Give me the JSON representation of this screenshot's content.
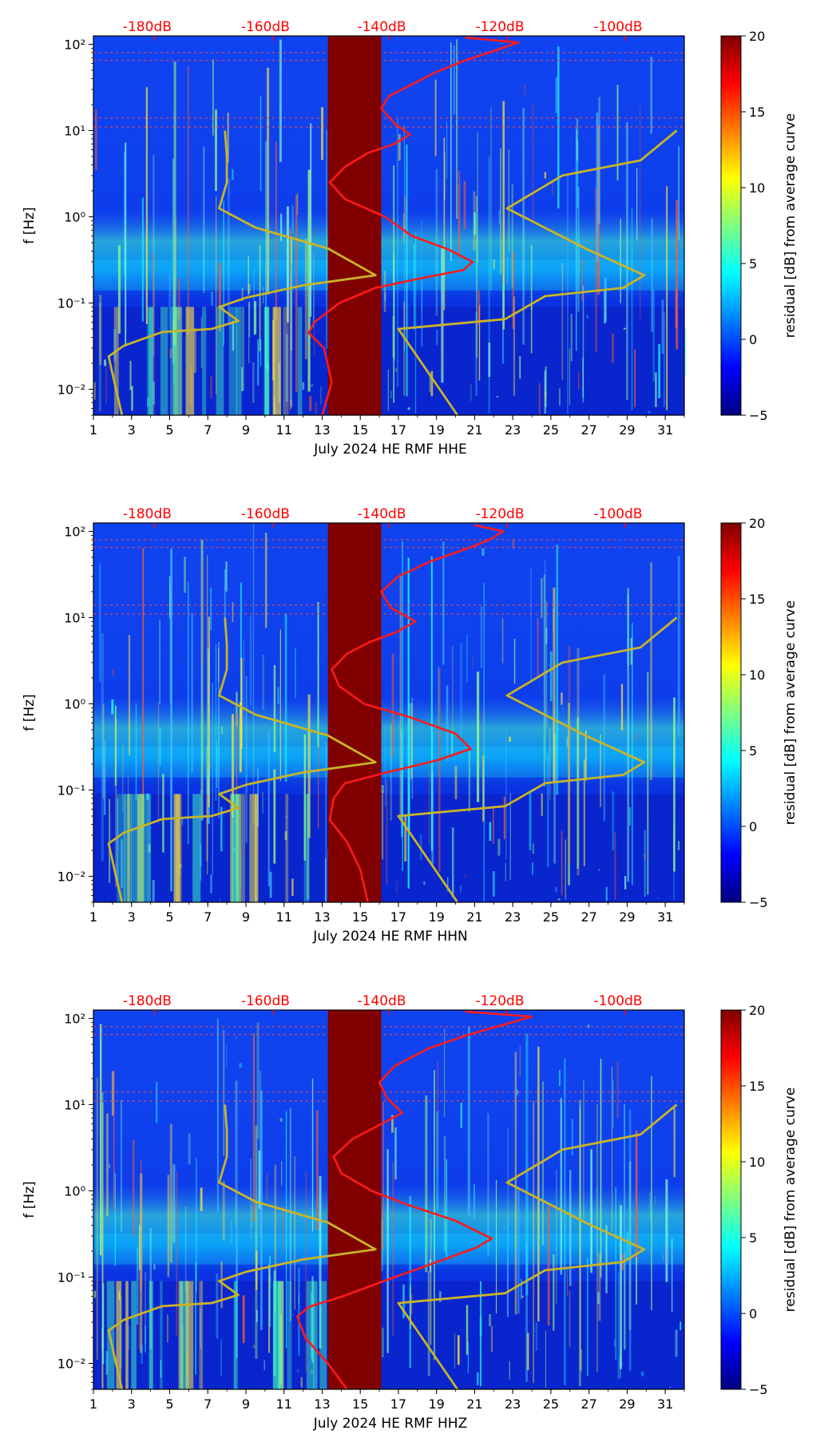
{
  "figure": {
    "colorbar": {
      "label": "residual [dB] from average curve",
      "ticks": [
        20,
        15,
        10,
        5,
        0,
        -5
      ],
      "tick_labels": [
        "20",
        "15",
        "10",
        "5",
        "0",
        "−5"
      ],
      "range": [
        -5,
        20
      ],
      "colors": [
        "#00007f",
        "#0000ff",
        "#007fff",
        "#00ffff",
        "#7fff7f",
        "#ffff00",
        "#ff7f00",
        "#ff0000",
        "#7f0000"
      ]
    },
    "colors": {
      "db_label": "#ff0000",
      "psd_curve": "#ff1a1a",
      "model_curve": "#c8b428",
      "gap": "#800000",
      "axis": "#000000"
    }
  },
  "chart_data": [
    {
      "type": "heatmap",
      "title": "",
      "xlabel": "July 2024 HE RMF  HHE",
      "ylabel": "f [Hz]",
      "x_ticks": [
        1,
        3,
        5,
        7,
        9,
        11,
        13,
        15,
        17,
        19,
        21,
        23,
        25,
        27,
        29,
        31
      ],
      "x_range": [
        1,
        32
      ],
      "y_ticks": [
        0.01,
        0.1,
        1,
        10,
        100
      ],
      "y_tick_labels": [
        "10⁻²",
        "10⁻¹",
        "10⁰",
        "10¹",
        "10²"
      ],
      "y_range": [
        0.005,
        125
      ],
      "db_axis_labels": [
        "-180dB",
        "-160dB",
        "-140dB",
        "-120dB",
        "-100dB"
      ],
      "db_axis_positions_day": [
        4.2,
        10.4,
        16.5,
        22.7,
        28.9
      ],
      "data_gap_days": [
        13.3,
        16.1
      ],
      "series": [
        {
          "name": "average PSD (top dB axis)",
          "points": [
            [
              13.0,
              0.005
            ],
            [
              13.5,
              0.012
            ],
            [
              13.1,
              0.03
            ],
            [
              12.3,
              0.045
            ],
            [
              12.6,
              0.06
            ],
            [
              13.9,
              0.1
            ],
            [
              15.8,
              0.15
            ],
            [
              18.5,
              0.2
            ],
            [
              20.4,
              0.24
            ],
            [
              20.9,
              0.3
            ],
            [
              19.6,
              0.42
            ],
            [
              17.7,
              0.6
            ],
            [
              16.3,
              1.0
            ],
            [
              14.2,
              1.6
            ],
            [
              13.4,
              2.5
            ],
            [
              14.2,
              3.8
            ],
            [
              15.4,
              5.5
            ],
            [
              16.8,
              7.0
            ],
            [
              17.6,
              9.0
            ],
            [
              16.8,
              12
            ],
            [
              16.1,
              18
            ],
            [
              16.5,
              25
            ],
            [
              17.8,
              35
            ],
            [
              19.0,
              48
            ],
            [
              20.5,
              65
            ],
            [
              22.1,
              85
            ],
            [
              23.3,
              105
            ],
            [
              20.5,
              120
            ]
          ]
        },
        {
          "name": "noise model (bottom day axis)",
          "points": [
            [
              2.5,
              0.005
            ],
            [
              2.1,
              0.012
            ],
            [
              1.8,
              0.024
            ],
            [
              2.6,
              0.032
            ],
            [
              4.6,
              0.046
            ],
            [
              7.2,
              0.05
            ],
            [
              8.6,
              0.062
            ],
            [
              7.6,
              0.09
            ],
            [
              9.0,
              0.115
            ],
            [
              12.0,
              0.16
            ],
            [
              15.8,
              0.21
            ],
            [
              13.3,
              0.43
            ],
            [
              9.5,
              0.75
            ],
            [
              7.6,
              1.25
            ],
            [
              8.0,
              2.5
            ],
            [
              8.0,
              5.0
            ],
            [
              7.9,
              10.0
            ]
          ]
        },
        {
          "name": "noise model right segment (bottom day axis)",
          "points": [
            [
              20.1,
              0.005
            ],
            [
              17.0,
              0.05
            ],
            [
              22.6,
              0.065
            ],
            [
              24.7,
              0.12
            ],
            [
              28.8,
              0.15
            ],
            [
              29.9,
              0.21
            ],
            [
              26.9,
              0.42
            ],
            [
              22.7,
              1.25
            ],
            [
              25.6,
              3.0
            ],
            [
              29.7,
              4.5
            ],
            [
              31.6,
              10.0
            ]
          ]
        }
      ]
    },
    {
      "type": "heatmap",
      "title": "",
      "xlabel": "July 2024 HE RMF  HHN",
      "ylabel": "f [Hz]",
      "x_ticks": [
        1,
        3,
        5,
        7,
        9,
        11,
        13,
        15,
        17,
        19,
        21,
        23,
        25,
        27,
        29,
        31
      ],
      "x_range": [
        1,
        32
      ],
      "y_ticks": [
        0.01,
        0.1,
        1,
        10,
        100
      ],
      "y_tick_labels": [
        "10⁻²",
        "10⁻¹",
        "10⁰",
        "10¹",
        "10²"
      ],
      "y_range": [
        0.005,
        125
      ],
      "db_axis_labels": [
        "-180dB",
        "-160dB",
        "-140dB",
        "-120dB",
        "-100dB"
      ],
      "db_axis_positions_day": [
        4.2,
        10.4,
        16.5,
        22.7,
        28.9
      ],
      "data_gap_days": [
        13.3,
        16.1
      ],
      "series": [
        {
          "name": "average PSD (top dB axis)",
          "points": [
            [
              15.4,
              0.005
            ],
            [
              15.0,
              0.012
            ],
            [
              14.3,
              0.025
            ],
            [
              13.4,
              0.045
            ],
            [
              13.6,
              0.08
            ],
            [
              14.2,
              0.12
            ],
            [
              16.4,
              0.16
            ],
            [
              19.0,
              0.22
            ],
            [
              20.8,
              0.3
            ],
            [
              20.0,
              0.45
            ],
            [
              17.6,
              0.7
            ],
            [
              15.2,
              1.0
            ],
            [
              13.9,
              1.6
            ],
            [
              13.5,
              2.5
            ],
            [
              14.3,
              3.8
            ],
            [
              15.5,
              5.2
            ],
            [
              16.9,
              6.8
            ],
            [
              17.9,
              9.0
            ],
            [
              16.6,
              13
            ],
            [
              16.1,
              20
            ],
            [
              17.0,
              30
            ],
            [
              18.7,
              45
            ],
            [
              20.5,
              62
            ],
            [
              21.8,
              80
            ],
            [
              22.5,
              100
            ],
            [
              21.0,
              118
            ]
          ]
        },
        {
          "name": "noise model (bottom day axis)",
          "points": [
            [
              2.5,
              0.005
            ],
            [
              2.1,
              0.012
            ],
            [
              1.8,
              0.024
            ],
            [
              2.6,
              0.032
            ],
            [
              4.6,
              0.046
            ],
            [
              7.2,
              0.05
            ],
            [
              8.6,
              0.062
            ],
            [
              7.6,
              0.09
            ],
            [
              9.0,
              0.115
            ],
            [
              12.0,
              0.16
            ],
            [
              15.8,
              0.21
            ],
            [
              13.3,
              0.43
            ],
            [
              9.5,
              0.75
            ],
            [
              7.6,
              1.25
            ],
            [
              8.0,
              2.5
            ],
            [
              8.0,
              5.0
            ],
            [
              7.9,
              10.0
            ]
          ]
        },
        {
          "name": "noise model right segment (bottom day axis)",
          "points": [
            [
              20.1,
              0.005
            ],
            [
              17.0,
              0.05
            ],
            [
              22.6,
              0.065
            ],
            [
              24.7,
              0.12
            ],
            [
              28.8,
              0.15
            ],
            [
              29.9,
              0.21
            ],
            [
              26.9,
              0.42
            ],
            [
              22.7,
              1.25
            ],
            [
              25.6,
              3.0
            ],
            [
              29.7,
              4.5
            ],
            [
              31.6,
              10.0
            ]
          ]
        }
      ]
    },
    {
      "type": "heatmap",
      "title": "",
      "xlabel": "July 2024 HE RMF  HHZ",
      "ylabel": "f [Hz]",
      "x_ticks": [
        1,
        3,
        5,
        7,
        9,
        11,
        13,
        15,
        17,
        19,
        21,
        23,
        25,
        27,
        29,
        31
      ],
      "x_range": [
        1,
        32
      ],
      "y_ticks": [
        0.01,
        0.1,
        1,
        10,
        100
      ],
      "y_tick_labels": [
        "10⁻²",
        "10⁻¹",
        "10⁰",
        "10¹",
        "10²"
      ],
      "y_range": [
        0.005,
        125
      ],
      "db_axis_labels": [
        "-180dB",
        "-160dB",
        "-140dB",
        "-120dB",
        "-100dB"
      ],
      "db_axis_positions_day": [
        4.2,
        10.4,
        16.5,
        22.7,
        28.9
      ],
      "data_gap_days": [
        13.3,
        16.1
      ],
      "series": [
        {
          "name": "average PSD (top dB axis)",
          "points": [
            [
              14.3,
              0.005
            ],
            [
              13.3,
              0.01
            ],
            [
              12.1,
              0.02
            ],
            [
              11.7,
              0.035
            ],
            [
              12.3,
              0.045
            ],
            [
              14.1,
              0.06
            ],
            [
              16.8,
              0.1
            ],
            [
              19.4,
              0.16
            ],
            [
              21.1,
              0.22
            ],
            [
              21.9,
              0.28
            ],
            [
              20.0,
              0.45
            ],
            [
              17.4,
              0.7
            ],
            [
              15.6,
              1.0
            ],
            [
              14.0,
              1.6
            ],
            [
              13.6,
              2.5
            ],
            [
              14.6,
              4.0
            ],
            [
              16.0,
              5.8
            ],
            [
              17.2,
              8.0
            ],
            [
              16.4,
              12
            ],
            [
              16.0,
              18
            ],
            [
              16.8,
              28
            ],
            [
              18.6,
              45
            ],
            [
              20.7,
              65
            ],
            [
              22.8,
              88
            ],
            [
              24.0,
              105
            ],
            [
              20.5,
              120
            ]
          ]
        },
        {
          "name": "noise model (bottom day axis)",
          "points": [
            [
              2.5,
              0.005
            ],
            [
              2.1,
              0.012
            ],
            [
              1.8,
              0.024
            ],
            [
              2.6,
              0.032
            ],
            [
              4.6,
              0.046
            ],
            [
              7.2,
              0.05
            ],
            [
              8.6,
              0.062
            ],
            [
              7.6,
              0.09
            ],
            [
              9.0,
              0.115
            ],
            [
              12.0,
              0.16
            ],
            [
              15.8,
              0.21
            ],
            [
              13.3,
              0.43
            ],
            [
              9.5,
              0.75
            ],
            [
              7.6,
              1.25
            ],
            [
              8.0,
              2.5
            ],
            [
              8.0,
              5.0
            ],
            [
              7.9,
              10.0
            ]
          ]
        },
        {
          "name": "noise model right segment (bottom day axis)",
          "points": [
            [
              20.1,
              0.005
            ],
            [
              17.0,
              0.05
            ],
            [
              22.6,
              0.065
            ],
            [
              24.7,
              0.12
            ],
            [
              28.8,
              0.15
            ],
            [
              29.9,
              0.21
            ],
            [
              26.9,
              0.42
            ],
            [
              22.7,
              1.25
            ],
            [
              25.6,
              3.0
            ],
            [
              29.7,
              4.5
            ],
            [
              31.6,
              10.0
            ]
          ]
        }
      ]
    }
  ]
}
